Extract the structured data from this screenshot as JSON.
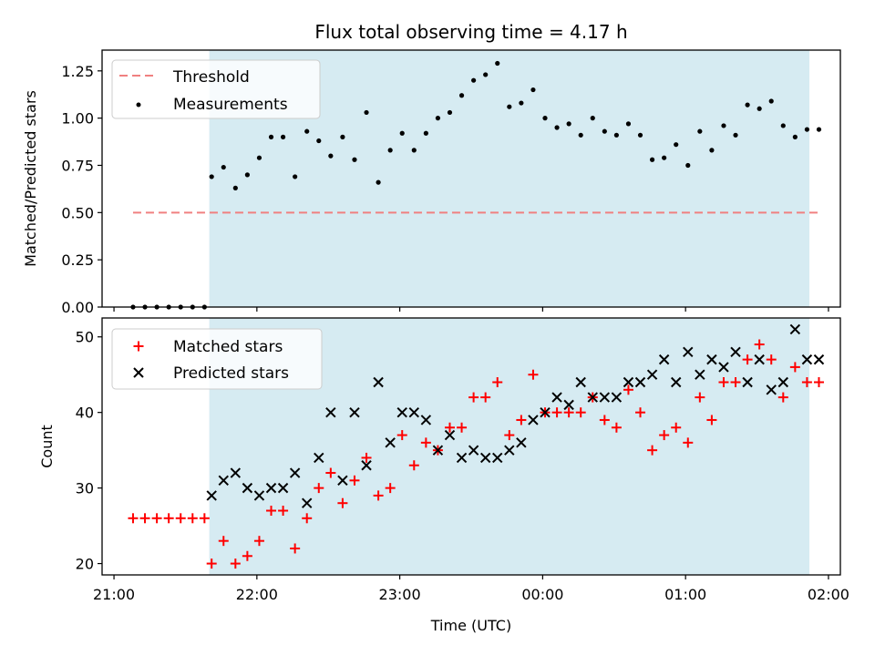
{
  "chart_data": [
    {
      "type": "scatter",
      "title": "Flux total observing time = 4.17 h",
      "xlabel": "",
      "ylabel": "Matched/Predicted stars",
      "xlim": [
        "20:55",
        "02:05"
      ],
      "ylim": [
        0,
        1.36
      ],
      "yticks": [
        "0.00",
        "0.25",
        "0.50",
        "0.75",
        "1.00",
        "1.25"
      ],
      "shaded_span": {
        "start": "21:40",
        "end": "01:52"
      },
      "legend_position": "upper-left",
      "threshold": {
        "name": "Threshold",
        "value": 0.5,
        "x_start": "21:08",
        "x_end": "01:56",
        "color": "#f08080"
      },
      "series": [
        {
          "name": "Measurements",
          "marker": "dot",
          "color": "#000000",
          "x": [
            "21:08",
            "21:13",
            "21:18",
            "21:23",
            "21:28",
            "21:33",
            "21:38",
            "21:41",
            "21:46",
            "21:51",
            "21:56",
            "22:01",
            "22:06",
            "22:11",
            "22:16",
            "22:21",
            "22:26",
            "22:31",
            "22:36",
            "22:41",
            "22:46",
            "22:51",
            "22:56",
            "23:01",
            "23:06",
            "23:11",
            "23:16",
            "23:21",
            "23:26",
            "23:31",
            "23:36",
            "23:41",
            "23:46",
            "23:51",
            "23:56",
            "00:01",
            "00:06",
            "00:11",
            "00:16",
            "00:21",
            "00:26",
            "00:31",
            "00:36",
            "00:41",
            "00:46",
            "00:51",
            "00:56",
            "01:01",
            "01:06",
            "01:11",
            "01:16",
            "01:21",
            "01:26",
            "01:31",
            "01:36",
            "01:41",
            "01:46",
            "01:51",
            "01:56"
          ],
          "y": [
            0,
            0,
            0,
            0,
            0,
            0,
            0,
            0.69,
            0.74,
            0.63,
            0.7,
            0.79,
            0.9,
            0.9,
            0.69,
            0.93,
            0.88,
            0.8,
            0.9,
            0.78,
            1.03,
            0.66,
            0.83,
            0.92,
            0.83,
            0.92,
            1.0,
            1.03,
            1.12,
            1.2,
            1.23,
            1.29,
            1.06,
            1.08,
            1.15,
            1.0,
            0.95,
            0.97,
            0.91,
            1.0,
            0.93,
            0.91,
            0.97,
            0.91,
            0.78,
            0.79,
            0.86,
            0.75,
            0.93,
            0.83,
            0.96,
            0.91,
            1.07,
            1.05,
            1.09,
            0.96,
            0.9,
            0.94,
            0.94
          ]
        }
      ]
    },
    {
      "type": "scatter",
      "title": "",
      "xlabel": "Time (UTC)",
      "ylabel": "Count",
      "xlim": [
        "20:55",
        "02:05"
      ],
      "ylim": [
        18.5,
        52.5
      ],
      "yticks": [
        "20",
        "30",
        "40",
        "50"
      ],
      "xticks": [
        "21:00",
        "22:00",
        "23:00",
        "00:00",
        "01:00",
        "02:00"
      ],
      "shaded_span": {
        "start": "21:40",
        "end": "01:52"
      },
      "legend_position": "upper-left",
      "series": [
        {
          "name": "Matched stars",
          "marker": "plus",
          "color": "#ff0000",
          "x": [
            "21:08",
            "21:13",
            "21:18",
            "21:23",
            "21:28",
            "21:33",
            "21:38",
            "21:41",
            "21:46",
            "21:51",
            "21:56",
            "22:01",
            "22:06",
            "22:11",
            "22:16",
            "22:21",
            "22:26",
            "22:31",
            "22:36",
            "22:41",
            "22:46",
            "22:51",
            "22:56",
            "23:01",
            "23:06",
            "23:11",
            "23:16",
            "23:21",
            "23:26",
            "23:31",
            "23:36",
            "23:41",
            "23:46",
            "23:51",
            "23:56",
            "00:01",
            "00:06",
            "00:11",
            "00:16",
            "00:21",
            "00:26",
            "00:31",
            "00:36",
            "00:41",
            "00:46",
            "00:51",
            "00:56",
            "01:01",
            "01:06",
            "01:11",
            "01:16",
            "01:21",
            "01:26",
            "01:31",
            "01:36",
            "01:41",
            "01:46",
            "01:51",
            "01:56"
          ],
          "y": [
            26,
            26,
            26,
            26,
            26,
            26,
            26,
            20,
            23,
            20,
            21,
            23,
            27,
            27,
            22,
            26,
            30,
            32,
            28,
            31,
            34,
            29,
            30,
            37,
            33,
            36,
            35,
            38,
            38,
            42,
            42,
            44,
            37,
            39,
            45,
            40,
            40,
            40,
            40,
            42,
            39,
            38,
            43,
            40,
            35,
            37,
            38,
            36,
            42,
            39,
            44,
            44,
            47,
            49,
            47,
            42,
            46,
            44,
            44
          ]
        },
        {
          "name": "Predicted stars",
          "marker": "x",
          "color": "#000000",
          "x": [
            "21:41",
            "21:46",
            "21:51",
            "21:56",
            "22:01",
            "22:06",
            "22:11",
            "22:16",
            "22:21",
            "22:26",
            "22:31",
            "22:36",
            "22:41",
            "22:46",
            "22:51",
            "22:56",
            "23:01",
            "23:06",
            "23:11",
            "23:16",
            "23:21",
            "23:26",
            "23:31",
            "23:36",
            "23:41",
            "23:46",
            "23:51",
            "23:56",
            "00:01",
            "00:06",
            "00:11",
            "00:16",
            "00:21",
            "00:26",
            "00:31",
            "00:36",
            "00:41",
            "00:46",
            "00:51",
            "00:56",
            "01:01",
            "01:06",
            "01:11",
            "01:16",
            "01:21",
            "01:26",
            "01:31",
            "01:36",
            "01:41",
            "01:46",
            "01:51",
            "01:56"
          ],
          "y": [
            29,
            31,
            32,
            30,
            29,
            30,
            30,
            32,
            28,
            34,
            40,
            31,
            40,
            33,
            44,
            36,
            40,
            40,
            39,
            35,
            37,
            34,
            35,
            34,
            34,
            35,
            36,
            39,
            40,
            42,
            41,
            44,
            42,
            42,
            42,
            44,
            44,
            45,
            47,
            44,
            48,
            45,
            47,
            46,
            48,
            44,
            47,
            43,
            44,
            51,
            47,
            47
          ]
        }
      ]
    }
  ]
}
